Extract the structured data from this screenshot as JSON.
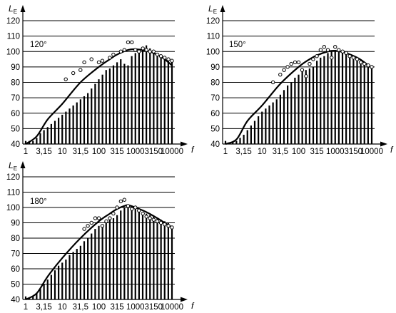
{
  "chart_data": [
    {
      "type": "bar",
      "angle_label": "120°",
      "ylabel": "L",
      "ylabel_sub": "E",
      "xlabel": "f",
      "ylim": [
        40,
        120
      ],
      "yticks": [
        "40",
        "50",
        "60",
        "70",
        "80",
        "90",
        "100",
        "110",
        "120"
      ],
      "xticks": [
        "1",
        "3,15",
        "10",
        "31,5",
        "100",
        "315",
        "1000",
        "3150",
        "10000"
      ],
      "categories": [
        "1",
        "1,25",
        "1,6",
        "2",
        "2,5",
        "3,15",
        "4",
        "5",
        "6,3",
        "8",
        "10",
        "12,5",
        "16",
        "20",
        "25",
        "31,5",
        "40",
        "50",
        "63",
        "80",
        "100",
        "125",
        "160",
        "200",
        "250",
        "315",
        "400",
        "500",
        "630",
        "800",
        "1000",
        "1250",
        "1600",
        "2000",
        "2500",
        "3150",
        "4000",
        "5000",
        "6300",
        "8000",
        "10000"
      ],
      "values": [
        42,
        42,
        42,
        44,
        47,
        49,
        51,
        53,
        55,
        57,
        59,
        61,
        63,
        65,
        67,
        69,
        71,
        73,
        76,
        79,
        82,
        85,
        88,
        89,
        91,
        93,
        95,
        92,
        91,
        97,
        99,
        101,
        103,
        104,
        102,
        100,
        99,
        98,
        96,
        95,
        93
      ],
      "markers": [
        [
          12.5,
          82
        ],
        [
          20,
          86
        ],
        [
          31.5,
          88
        ],
        [
          40,
          93
        ],
        [
          63,
          95
        ],
        [
          100,
          93
        ],
        [
          125,
          94
        ],
        [
          200,
          96
        ],
        [
          250,
          98
        ],
        [
          400,
          100
        ],
        [
          500,
          101
        ],
        [
          630,
          106
        ],
        [
          800,
          106
        ],
        [
          1000,
          101
        ],
        [
          1250,
          100
        ],
        [
          1600,
          102
        ],
        [
          2000,
          101
        ],
        [
          2500,
          100
        ],
        [
          3150,
          100
        ],
        [
          4000,
          98
        ],
        [
          5000,
          97
        ],
        [
          6300,
          96
        ],
        [
          8000,
          95
        ],
        [
          10000,
          94
        ]
      ],
      "curve": [
        [
          1,
          40
        ],
        [
          2,
          45
        ],
        [
          4,
          56
        ],
        [
          10,
          66
        ],
        [
          31.5,
          80
        ],
        [
          100,
          90
        ],
        [
          200,
          95
        ],
        [
          315,
          98
        ],
        [
          630,
          101
        ],
        [
          1000,
          101.5
        ],
        [
          2000,
          100.5
        ],
        [
          4000,
          98
        ],
        [
          6300,
          95
        ],
        [
          10000,
          91
        ]
      ]
    },
    {
      "type": "bar",
      "angle_label": "150°",
      "ylabel": "L",
      "ylabel_sub": "E",
      "xlabel": "f",
      "ylim": [
        40,
        120
      ],
      "yticks": [
        "40",
        "50",
        "60",
        "70",
        "80",
        "90",
        "100",
        "110",
        "120"
      ],
      "xticks": [
        "1",
        "3,15",
        "10",
        "31,5",
        "100",
        "315",
        "1000",
        "3150",
        "10000"
      ],
      "categories": [
        "1",
        "1,25",
        "1,6",
        "2",
        "2,5",
        "3,15",
        "4",
        "5",
        "6,3",
        "8",
        "10",
        "12,5",
        "16",
        "20",
        "25",
        "31,5",
        "40",
        "50",
        "63",
        "80",
        "100",
        "125",
        "160",
        "200",
        "250",
        "315",
        "400",
        "500",
        "630",
        "800",
        "1000",
        "1250",
        "1600",
        "2000",
        "2500",
        "3150",
        "4000",
        "5000",
        "6300",
        "8000",
        "10000"
      ],
      "values": [
        42,
        41,
        41,
        42,
        44,
        46,
        49,
        52,
        55,
        58,
        61,
        63,
        65,
        67,
        69,
        72,
        75,
        78,
        80,
        83,
        85,
        87,
        88,
        89,
        90,
        94,
        96,
        97,
        99,
        100,
        101,
        102,
        100,
        99,
        97,
        96,
        95,
        94,
        93,
        92,
        90
      ],
      "markers": [
        [
          20,
          80
        ],
        [
          31.5,
          85
        ],
        [
          40,
          88
        ],
        [
          50,
          90
        ],
        [
          63,
          92
        ],
        [
          80,
          93
        ],
        [
          100,
          93
        ],
        [
          125,
          88
        ],
        [
          160,
          84
        ],
        [
          200,
          92
        ],
        [
          250,
          95
        ],
        [
          315,
          97
        ],
        [
          400,
          101
        ],
        [
          500,
          103
        ],
        [
          630,
          101
        ],
        [
          800,
          96
        ],
        [
          1000,
          103
        ],
        [
          1250,
          101
        ],
        [
          1600,
          100
        ],
        [
          2000,
          99
        ],
        [
          2500,
          97
        ],
        [
          3150,
          96
        ],
        [
          4000,
          95
        ],
        [
          5000,
          93
        ],
        [
          6300,
          92
        ],
        [
          8000,
          91
        ],
        [
          10000,
          90
        ]
      ],
      "curve": [
        [
          1,
          40
        ],
        [
          2,
          43
        ],
        [
          4,
          55
        ],
        [
          10,
          65
        ],
        [
          31.5,
          79
        ],
        [
          100,
          90
        ],
        [
          200,
          95
        ],
        [
          315,
          97.5
        ],
        [
          630,
          100
        ],
        [
          1000,
          100.5
        ],
        [
          2000,
          99
        ],
        [
          4000,
          96
        ],
        [
          6300,
          93
        ],
        [
          10000,
          89
        ]
      ]
    },
    {
      "type": "bar",
      "angle_label": "180°",
      "ylabel": "L",
      "ylabel_sub": "E",
      "xlabel": "f",
      "ylim": [
        40,
        120
      ],
      "yticks": [
        "40",
        "50",
        "60",
        "70",
        "80",
        "90",
        "100",
        "110",
        "120"
      ],
      "xticks": [
        "1",
        "3,15",
        "10",
        "31,5",
        "100",
        "315",
        "1000",
        "3150",
        "10000"
      ],
      "categories": [
        "1",
        "1,25",
        "1,6",
        "2",
        "2,5",
        "3,15",
        "4",
        "5",
        "6,3",
        "8",
        "10",
        "12,5",
        "16",
        "20",
        "25",
        "31,5",
        "40",
        "50",
        "63",
        "80",
        "100",
        "125",
        "160",
        "200",
        "250",
        "315",
        "400",
        "500",
        "630",
        "800",
        "1000",
        "1250",
        "1600",
        "2000",
        "2500",
        "3150",
        "4000",
        "5000",
        "6300",
        "8000",
        "10000"
      ],
      "values": [
        42,
        41,
        42,
        44,
        47,
        50,
        53,
        56,
        59,
        62,
        64,
        66,
        69,
        71,
        73,
        75,
        78,
        80,
        83,
        86,
        88,
        89,
        91,
        92,
        93,
        95,
        98,
        100,
        102,
        101,
        100,
        99,
        97,
        96,
        95,
        94,
        93,
        92,
        91,
        90,
        88
      ],
      "markers": [
        [
          40,
          86
        ],
        [
          50,
          88
        ],
        [
          63,
          90
        ],
        [
          80,
          93
        ],
        [
          100,
          93
        ],
        [
          125,
          88
        ],
        [
          160,
          91
        ],
        [
          200,
          93
        ],
        [
          250,
          96
        ],
        [
          315,
          100
        ],
        [
          400,
          104
        ],
        [
          500,
          105
        ],
        [
          630,
          101
        ],
        [
          800,
          99
        ],
        [
          1000,
          100
        ],
        [
          1250,
          98
        ],
        [
          1600,
          96
        ],
        [
          2000,
          94
        ],
        [
          2500,
          93
        ],
        [
          3150,
          92
        ],
        [
          4000,
          91
        ],
        [
          5000,
          90
        ],
        [
          6300,
          89
        ],
        [
          8000,
          88
        ],
        [
          10000,
          87
        ]
      ],
      "curve": [
        [
          1,
          40
        ],
        [
          2,
          44
        ],
        [
          4,
          55
        ],
        [
          10,
          67
        ],
        [
          31.5,
          80
        ],
        [
          100,
          91
        ],
        [
          200,
          96
        ],
        [
          315,
          99
        ],
        [
          500,
          101
        ],
        [
          630,
          101.5
        ],
        [
          1000,
          100
        ],
        [
          2000,
          97
        ],
        [
          4000,
          93
        ],
        [
          6300,
          90
        ],
        [
          10000,
          87
        ]
      ]
    }
  ]
}
